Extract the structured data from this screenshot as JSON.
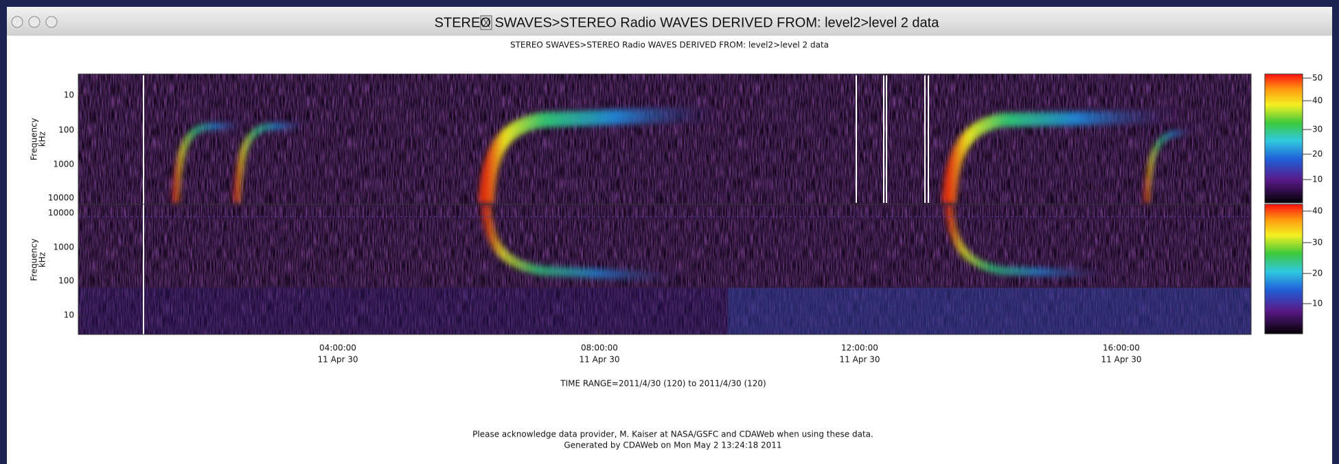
{
  "window": {
    "title": "STEREO  SWAVES>STEREO Radio WAVES  DERIVED FROM: level2>level 2 data"
  },
  "plot": {
    "title": "STEREO  SWAVES>STEREO Radio WAVES  DERIVED FROM: level2>level 2 data",
    "panels": [
      {
        "y_label": [
          "Frequency",
          "kHz"
        ],
        "y_ticks": [
          "10",
          "100",
          "1000",
          "10000"
        ],
        "colorbar_ticks": [
          "50",
          "40",
          "30",
          "20",
          "10"
        ]
      },
      {
        "y_label": [
          "Frequency",
          "kHz"
        ],
        "y_ticks": [
          "10000",
          "1000",
          "100",
          "10"
        ],
        "colorbar_ticks": [
          "40",
          "30",
          "20",
          "10"
        ]
      }
    ],
    "x_ticks": [
      {
        "time": "04:00:00",
        "date": "11 Apr 30"
      },
      {
        "time": "08:00:00",
        "date": "11 Apr 30"
      },
      {
        "time": "12:00:00",
        "date": "11 Apr 30"
      },
      {
        "time": "16:00:00",
        "date": "11 Apr 30"
      }
    ],
    "time_range": "TIME RANGE=2011/4/30 (120) to 2011/4/30 (120)",
    "footer": [
      "Please acknowledge data provider, M. Kaiser at NASA/GSFC and CDAWeb when using these data.",
      "Generated by CDAWeb on Mon May  2 13:24:18 2011"
    ]
  }
}
